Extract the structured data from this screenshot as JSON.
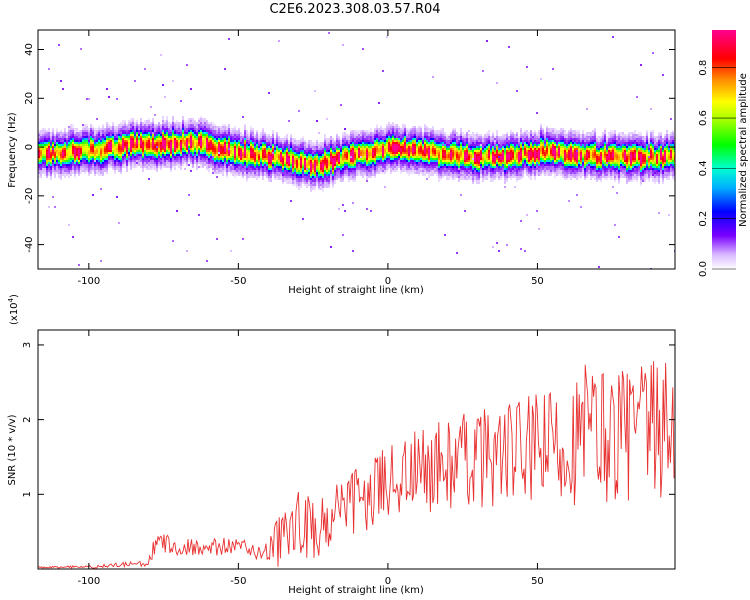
{
  "title": "C2E6.2023.308.03.57.R04",
  "chart_data": [
    {
      "type": "heatmap",
      "xlabel": "Height of straight line (km)",
      "ylabel": "Frequency (Hz)",
      "xlim": [
        -117,
        96
      ],
      "ylim": [
        -50,
        48
      ],
      "x_ticks": [
        -100,
        -50,
        0,
        50
      ],
      "y_ticks": [
        -40,
        -20,
        0,
        20,
        40
      ],
      "colorbar": {
        "label": "Normalized spectral amplitude",
        "range": [
          0,
          0.95
        ],
        "ticks": [
          0.0,
          0.2,
          0.4,
          0.6,
          0.8
        ]
      },
      "ridge": {
        "x": [
          -117,
          -105,
          -95,
          -85,
          -75,
          -65,
          -55,
          -45,
          -38,
          -30,
          -25,
          -20,
          -10,
          0,
          5,
          10,
          20,
          30,
          40,
          50,
          60,
          70,
          80,
          96
        ],
        "center_hz": [
          -3,
          -2,
          -1,
          1,
          1,
          2,
          -1,
          -3,
          -4,
          -6,
          -8,
          -6,
          -3,
          -1,
          -1,
          -2,
          -3,
          -4,
          -4,
          -2,
          -3,
          -4,
          -4,
          -4
        ]
      }
    },
    {
      "type": "line",
      "xlabel": "Height of straight line (km)",
      "ylabel": "SNR (10 * v/v)",
      "y_multiplier": "(x10",
      "y_multiplier_exp": "4",
      "y_multiplier_close": ")",
      "xlim": [
        -117,
        96
      ],
      "ylim": [
        0,
        3.2
      ],
      "x_ticks": [
        -100,
        -50,
        0,
        50
      ],
      "y_ticks": [
        1,
        2,
        3
      ],
      "series": [
        {
          "color": "#e83030",
          "x": [
            -117,
            -100,
            -90,
            -80,
            -78,
            -76,
            -70,
            -60,
            -50,
            -42,
            -38,
            -36,
            -32,
            -30,
            -26,
            -25,
            -20,
            -15,
            -10,
            -5,
            0,
            5,
            10,
            15,
            20,
            25,
            30,
            40,
            50,
            55,
            60,
            65,
            66,
            70,
            75,
            80,
            85,
            90,
            96
          ],
          "base": [
            0.02,
            0.03,
            0.05,
            0.08,
            0.25,
            0.35,
            0.3,
            0.3,
            0.3,
            0.22,
            0.25,
            0.4,
            0.5,
            0.6,
            0.55,
            0.5,
            0.65,
            0.75,
            0.9,
            1.0,
            1.2,
            1.25,
            1.3,
            1.35,
            1.4,
            1.45,
            1.5,
            1.55,
            1.6,
            1.65,
            1.7,
            1.75,
            1.75,
            1.8,
            1.8,
            1.85,
            1.85,
            1.85,
            1.9
          ],
          "amp": [
            0.01,
            0.02,
            0.03,
            0.05,
            0.2,
            0.15,
            0.12,
            0.12,
            0.12,
            0.1,
            0.3,
            0.45,
            0.4,
            0.5,
            0.45,
            0.4,
            0.4,
            0.45,
            0.5,
            0.45,
            0.5,
            0.55,
            0.6,
            0.6,
            0.65,
            0.65,
            0.7,
            0.7,
            0.75,
            0.8,
            0.85,
            0.9,
            1.2,
            0.95,
            0.95,
            0.95,
            0.95,
            0.95,
            0.95
          ]
        }
      ]
    }
  ]
}
